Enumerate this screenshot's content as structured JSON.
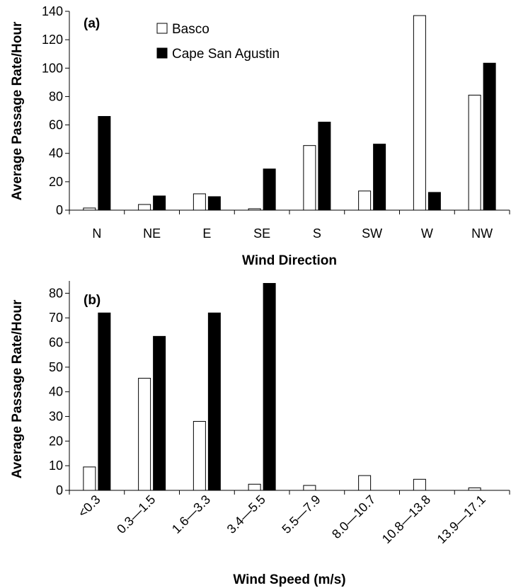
{
  "chart_data": [
    {
      "type": "bar",
      "panel_label": "(a)",
      "xlabel": "Wind Direction",
      "ylabel": "Average Passage Rate/Hour",
      "categories": [
        "N",
        "NE",
        "E",
        "SE",
        "S",
        "SW",
        "W",
        "NW"
      ],
      "ylim": [
        0,
        140
      ],
      "yticks": [
        0,
        20,
        40,
        60,
        80,
        100,
        120,
        140
      ],
      "legend_position": "top-center",
      "series": [
        {
          "name": "Basco",
          "color": "#ffffff",
          "values": [
            1.5,
            4,
            11.5,
            1,
            45.5,
            13.5,
            137,
            81
          ]
        },
        {
          "name": "Cape San Agustin",
          "color": "#000000",
          "values": [
            66,
            10,
            9.5,
            29,
            62,
            46.5,
            12.5,
            103.5
          ]
        }
      ]
    },
    {
      "type": "bar",
      "panel_label": "(b)",
      "xlabel": "Wind Speed (m/s)",
      "ylabel": "Average Passage Rate/Hour",
      "categories": [
        "<0.3",
        "0.3—1.5",
        "1.6—3.3",
        "3.4—5.5",
        "5.5—7.9",
        "8.0—10.7",
        "10.8—13.8",
        "13.9—17.1"
      ],
      "ylim": [
        0,
        85
      ],
      "yticks": [
        0,
        10,
        20,
        30,
        40,
        50,
        60,
        70,
        80
      ],
      "series": [
        {
          "name": "Basco",
          "color": "#ffffff",
          "values": [
            9.5,
            45.5,
            28,
            2.5,
            2,
            6,
            4.5,
            1
          ]
        },
        {
          "name": "Cape San Agustin",
          "color": "#000000",
          "values": [
            72,
            62.5,
            72,
            84,
            0,
            0,
            0,
            0
          ]
        }
      ]
    }
  ]
}
